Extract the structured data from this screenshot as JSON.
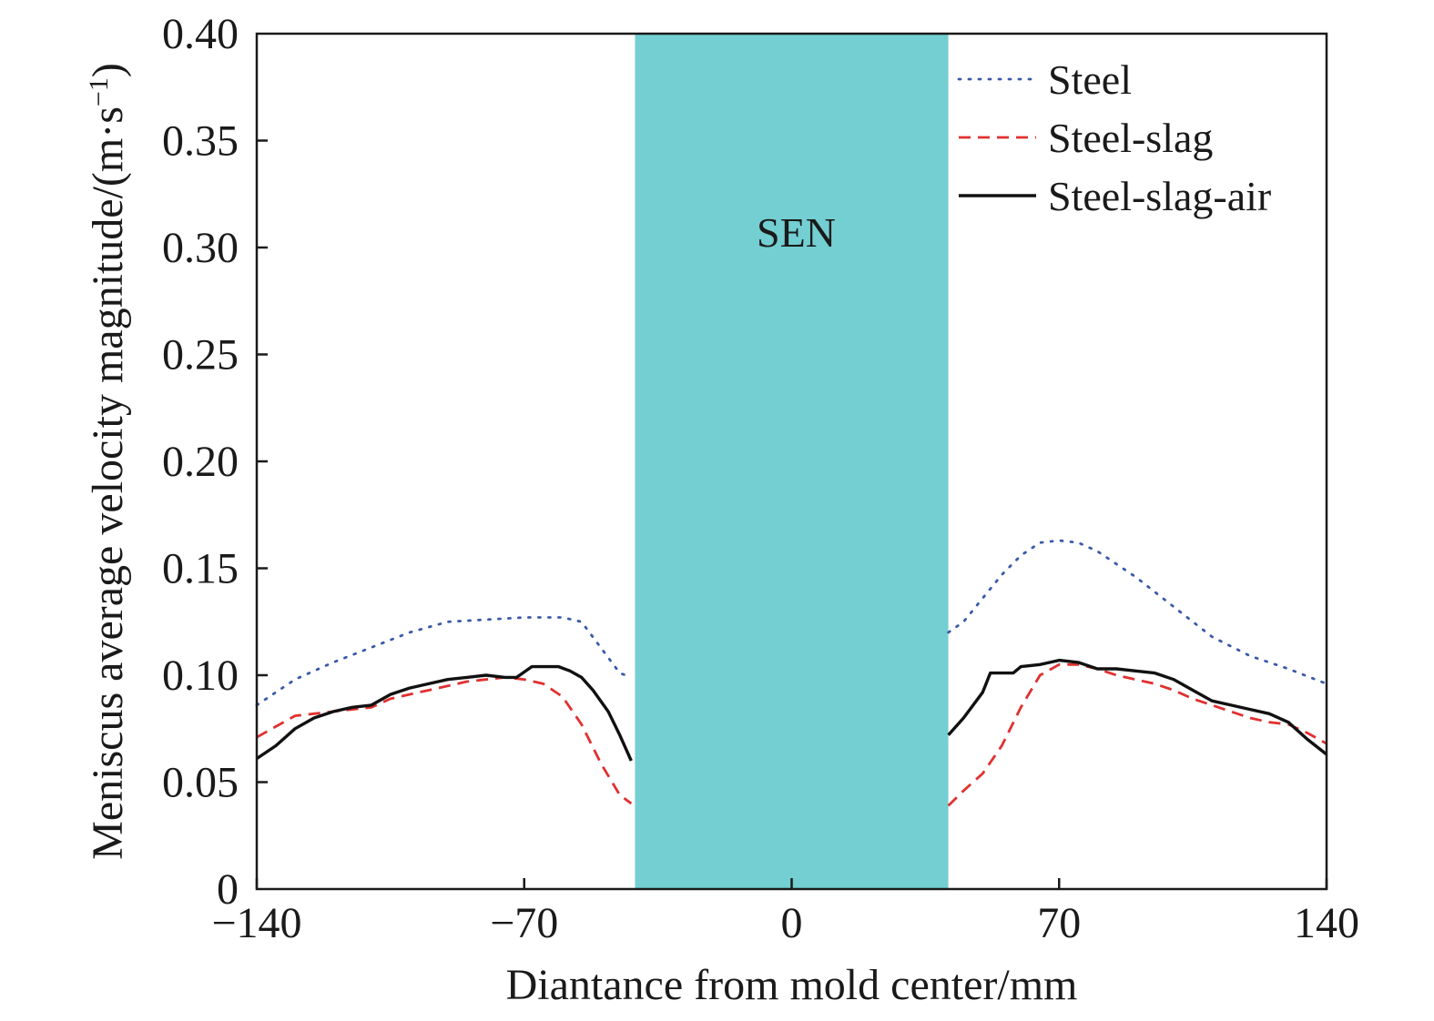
{
  "chart_data": {
    "type": "line",
    "xlabel": "Diantance from mold center/mm",
    "ylabel": "Meniscus average velocity magnitude/(m·s",
    "ylabel_sup": "−1",
    "ylabel_close": ")",
    "xlim": [
      -140,
      140
    ],
    "ylim": [
      0,
      0.4
    ],
    "x_ticks": [
      -140,
      -70,
      0,
      70,
      140
    ],
    "x_tick_labels": [
      "−140",
      "−70",
      "0",
      "70",
      "140"
    ],
    "y_ticks": [
      0,
      0.05,
      0.1,
      0.15,
      0.2,
      0.25,
      0.3,
      0.35,
      0.4
    ],
    "y_tick_labels": [
      "0",
      "0.05",
      "0.10",
      "0.15",
      "0.20",
      "0.25",
      "0.30",
      "0.35",
      "0.40"
    ],
    "grid": false,
    "legend_position": "top-right",
    "band": {
      "label": "SEN",
      "x_start": -41,
      "x_end": 41,
      "color": "#73cfd1"
    },
    "series": [
      {
        "name": "Steel",
        "color": "#3a5aa8",
        "style": "dotted",
        "segments": [
          {
            "x": [
              -140,
              -130,
              -120,
              -110,
              -100,
              -90,
              -80,
              -70,
              -60,
              -55,
              -50,
              -45,
              -42
            ],
            "y": [
              0.086,
              0.098,
              0.106,
              0.113,
              0.12,
              0.125,
              0.126,
              0.127,
              0.127,
              0.125,
              0.113,
              0.101,
              0.099
            ]
          },
          {
            "x": [
              41,
              45,
              50,
              55,
              60,
              65,
              70,
              75,
              80,
              90,
              100,
              110,
              120,
              130,
              140
            ],
            "y": [
              0.12,
              0.125,
              0.136,
              0.147,
              0.156,
              0.162,
              0.163,
              0.162,
              0.158,
              0.146,
              0.132,
              0.118,
              0.109,
              0.103,
              0.096
            ]
          }
        ]
      },
      {
        "name": "Steel-slag",
        "color": "#e03030",
        "style": "dashed",
        "segments": [
          {
            "x": [
              -140,
              -135,
              -130,
              -125,
              -120,
              -115,
              -110,
              -105,
              -100,
              -95,
              -90,
              -85,
              -80,
              -75,
              -70,
              -65,
              -60,
              -55,
              -50,
              -45,
              -42
            ],
            "y": [
              0.071,
              0.076,
              0.081,
              0.082,
              0.083,
              0.084,
              0.085,
              0.089,
              0.091,
              0.093,
              0.095,
              0.097,
              0.098,
              0.099,
              0.098,
              0.096,
              0.09,
              0.077,
              0.059,
              0.044,
              0.04
            ]
          },
          {
            "x": [
              41,
              45,
              50,
              55,
              60,
              65,
              70,
              75,
              80,
              85,
              90,
              95,
              100,
              105,
              110,
              115,
              120,
              125,
              130,
              135,
              140
            ],
            "y": [
              0.039,
              0.046,
              0.054,
              0.067,
              0.085,
              0.1,
              0.105,
              0.105,
              0.103,
              0.1,
              0.098,
              0.096,
              0.093,
              0.089,
              0.086,
              0.083,
              0.08,
              0.078,
              0.077,
              0.073,
              0.068
            ]
          }
        ]
      },
      {
        "name": "Steel-slag-air",
        "color": "#111111",
        "style": "solid",
        "segments": [
          {
            "x": [
              -140,
              -135,
              -130,
              -125,
              -120,
              -115,
              -110,
              -105,
              -100,
              -95,
              -90,
              -85,
              -80,
              -75,
              -72,
              -68,
              -65,
              -61,
              -58,
              -55,
              -52,
              -48,
              -45,
              -42
            ],
            "y": [
              0.061,
              0.067,
              0.075,
              0.08,
              0.083,
              0.085,
              0.086,
              0.091,
              0.094,
              0.096,
              0.098,
              0.099,
              0.1,
              0.099,
              0.099,
              0.104,
              0.104,
              0.104,
              0.102,
              0.099,
              0.093,
              0.083,
              0.072,
              0.06
            ]
          },
          {
            "x": [
              41,
              45,
              50,
              52,
              55,
              58,
              60,
              65,
              70,
              75,
              80,
              85,
              90,
              95,
              100,
              105,
              110,
              115,
              120,
              125,
              130,
              135,
              140
            ],
            "y": [
              0.072,
              0.08,
              0.092,
              0.101,
              0.101,
              0.101,
              0.104,
              0.105,
              0.107,
              0.106,
              0.103,
              0.103,
              0.102,
              0.101,
              0.098,
              0.093,
              0.088,
              0.086,
              0.084,
              0.082,
              0.078,
              0.07,
              0.063
            ]
          }
        ]
      }
    ]
  }
}
